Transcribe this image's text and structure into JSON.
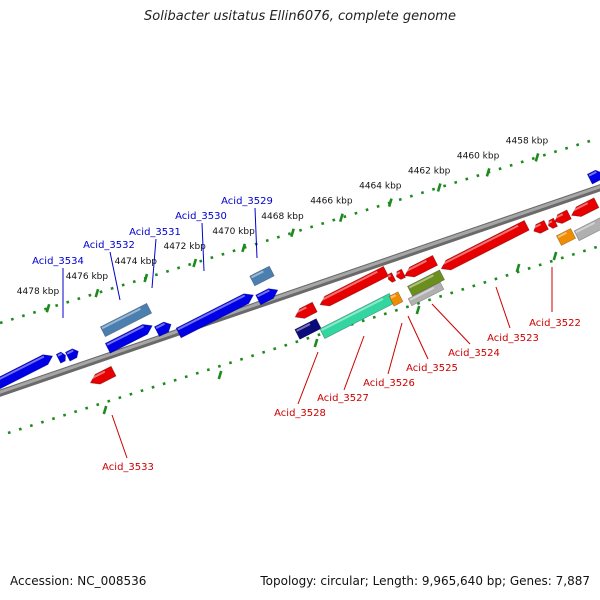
{
  "title": "Solibacter usitatus Ellin6076, complete genome",
  "footer": {
    "accession": "Accession: NC_008536",
    "info": "Topology: circular; Length: 9,965,640 bp; Genes: 7,887"
  },
  "colors": {
    "plus_strand": "#0000e6",
    "minus_strand": "#e60000",
    "steel": "#4a7fb0",
    "teal": "#33d6a0",
    "olive": "#6b8f1e",
    "orange": "#f08c00",
    "navy": "#0a0a7a",
    "gray": "#b0b0b0",
    "backbone": "#808080",
    "ruler": "#1e8a1e",
    "label_plus": "#0000cc",
    "label_minus": "#cc0000"
  },
  "ruler_ticks": [
    {
      "kbp": 4458,
      "label": "4458 kbp"
    },
    {
      "kbp": 4460,
      "label": "4460 kbp"
    },
    {
      "kbp": 4462,
      "label": "4462 kbp"
    },
    {
      "kbp": 4464,
      "label": "4464 kbp"
    },
    {
      "kbp": 4466,
      "label": "4466 kbp"
    },
    {
      "kbp": 4468,
      "label": "4468 kbp"
    },
    {
      "kbp": 4470,
      "label": "4470 kbp"
    },
    {
      "kbp": 4472,
      "label": "4472 kbp"
    },
    {
      "kbp": 4474,
      "label": "4474 kbp"
    },
    {
      "kbp": 4476,
      "label": "4476 kbp"
    },
    {
      "kbp": 4478,
      "label": "4478 kbp"
    }
  ],
  "gene_labels": [
    {
      "name": "Acid_3534",
      "strand": "plus"
    },
    {
      "name": "Acid_3532",
      "strand": "plus"
    },
    {
      "name": "Acid_3531",
      "strand": "plus"
    },
    {
      "name": "Acid_3530",
      "strand": "plus"
    },
    {
      "name": "Acid_3529",
      "strand": "plus"
    },
    {
      "name": "Acid_3522",
      "strand": "minus"
    },
    {
      "name": "Acid_3523",
      "strand": "minus"
    },
    {
      "name": "Acid_3524",
      "strand": "minus"
    },
    {
      "name": "Acid_3525",
      "strand": "minus"
    },
    {
      "name": "Acid_3526",
      "strand": "minus"
    },
    {
      "name": "Acid_3527",
      "strand": "minus"
    },
    {
      "name": "Acid_3528",
      "strand": "minus"
    },
    {
      "name": "Acid_3533",
      "strand": "minus"
    }
  ]
}
